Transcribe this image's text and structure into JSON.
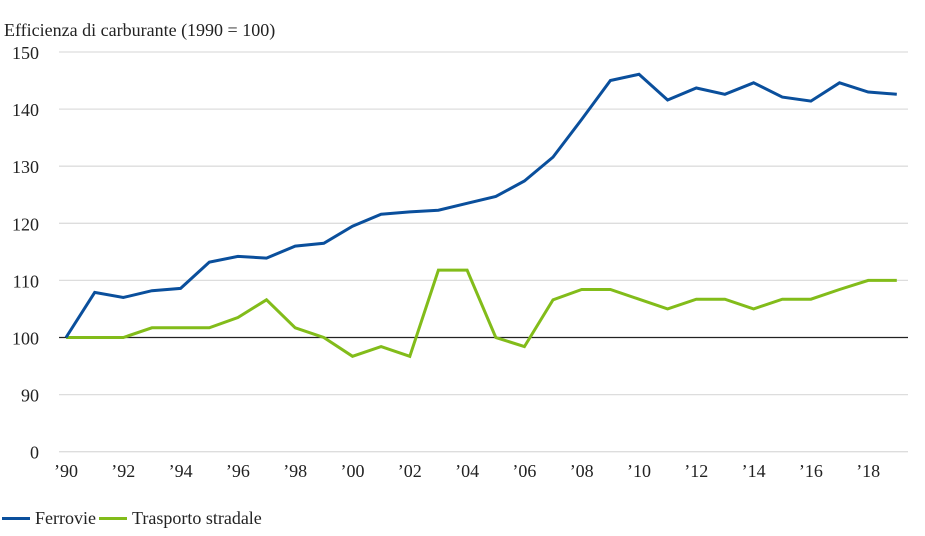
{
  "chart_data": {
    "type": "line",
    "title": "",
    "ylabel": "Efficienza di carburante (1990 = 100)",
    "xlabel": "",
    "x": [
      1990,
      1991,
      1992,
      1993,
      1994,
      1995,
      1996,
      1997,
      1998,
      1999,
      2000,
      2001,
      2002,
      2003,
      2004,
      2005,
      2006,
      2007,
      2008,
      2009,
      2010,
      2011,
      2012,
      2013,
      2014,
      2015,
      2016,
      2017,
      2018,
      2019
    ],
    "x_tick_labels": [
      "'90",
      "'92",
      "'94",
      "'96",
      "'98",
      "'00",
      "'02",
      "'04",
      "'06",
      "'08",
      "'10",
      "'12",
      "'14",
      "'16",
      "'18"
    ],
    "x_tick_values": [
      1990,
      1992,
      1994,
      1996,
      1998,
      2000,
      2002,
      2004,
      2006,
      2008,
      2010,
      2012,
      2014,
      2016,
      2018
    ],
    "y_tick_labels": [
      "150",
      "140",
      "130",
      "120",
      "110",
      "100",
      "90",
      "0"
    ],
    "y_axis_note": "broken axis: '0' label placed one step below 90",
    "ylim": [
      80,
      150
    ],
    "baseline": 100,
    "grid": true,
    "legend_position": "bottom-left",
    "series": [
      {
        "name": "Ferrovie",
        "color": "#0a4f9c",
        "values": [
          100,
          107.9,
          107.0,
          108.2,
          108.6,
          113.2,
          114.2,
          113.9,
          116.0,
          116.5,
          119.5,
          121.6,
          122.0,
          122.3,
          123.5,
          124.7,
          127.4,
          131.6,
          138.2,
          145.0,
          146.1,
          141.6,
          143.7,
          142.6,
          144.6,
          142.1,
          141.4,
          144.6,
          143.0,
          142.6
        ]
      },
      {
        "name": "Trasporto stradale",
        "color": "#82bc1a",
        "values": [
          100,
          100,
          100,
          101.7,
          101.7,
          101.7,
          103.5,
          106.6,
          101.7,
          100,
          96.7,
          98.4,
          96.7,
          111.8,
          111.8,
          100,
          98.4,
          106.6,
          108.4,
          108.4,
          106.7,
          105.0,
          106.7,
          106.7,
          105.0,
          106.7,
          106.7,
          108.4,
          110.0,
          110.0
        ]
      }
    ]
  }
}
